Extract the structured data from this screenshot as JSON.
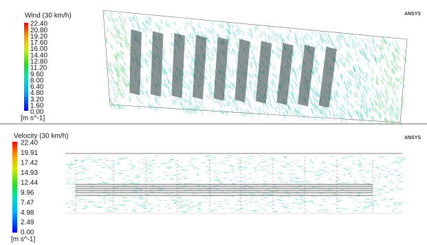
{
  "panels": [
    {
      "logo": "ANSYS",
      "legend": {
        "title": "Wind (30 km/h)",
        "labels": [
          "22.40",
          "20.80",
          "19.20",
          "17.60",
          "16.00",
          "14.40",
          "12.80",
          "11.20",
          "9.60",
          "8.00",
          "6.40",
          "4.80",
          "3.20",
          "1.60",
          "0.00"
        ],
        "unit": "[m s^-1]"
      }
    },
    {
      "logo": "ANSYS",
      "legend": {
        "title": "Velocity (30 km/h)",
        "labels": [
          "22.40",
          "19.91",
          "17.42",
          "14.93",
          "12.44",
          "9.96",
          "7.47",
          "4.98",
          "2.49",
          "0.00"
        ],
        "unit": "[m s^-1]"
      }
    }
  ]
}
